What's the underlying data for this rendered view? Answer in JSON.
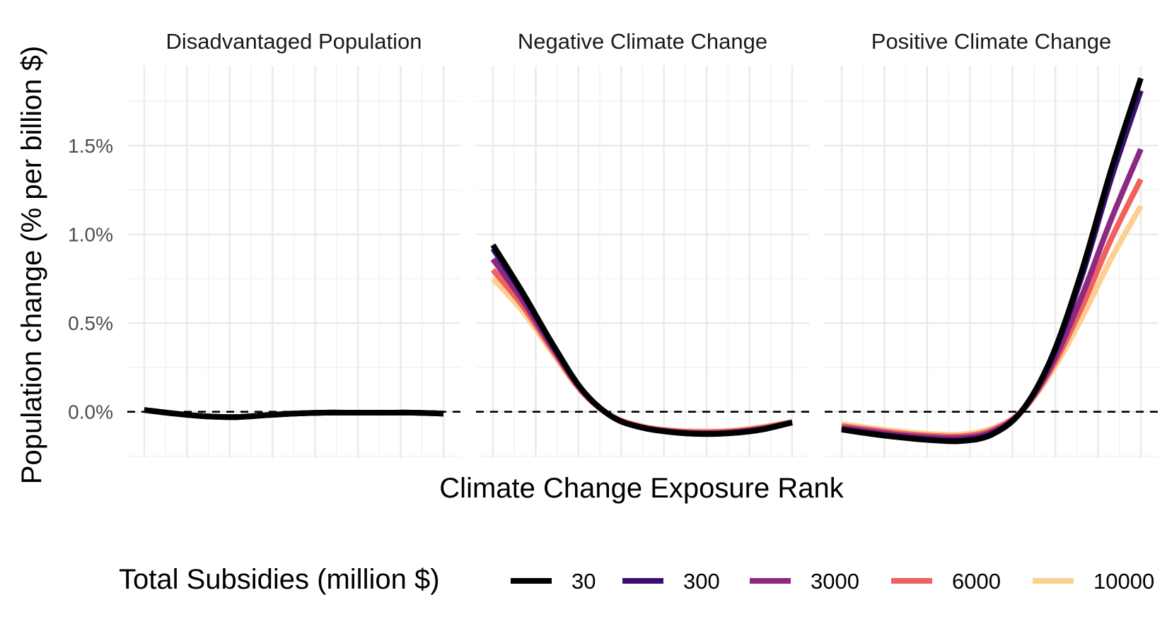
{
  "chart_data": {
    "type": "line",
    "facets": [
      "Disadvantaged Population",
      "Negative Climate Change",
      "Positive Climate Change"
    ],
    "xlabel": "Climate Change Exposure Rank",
    "ylabel": "Population change (% per billion $)",
    "x_tick_labels": [],
    "y_ticks": [
      0.0,
      0.5,
      1.0,
      1.5
    ],
    "y_tick_labels": [
      "0.0%",
      "0.5%",
      "1.0%",
      "1.5%"
    ],
    "ylim": [
      -0.26,
      1.95
    ],
    "xlim": [
      0,
      1
    ],
    "reference_line": {
      "y": 0,
      "style": "dashed"
    },
    "legend": {
      "title": "Total Subsidies (million $)",
      "position": "bottom",
      "entries": [
        "30",
        "300",
        "3000",
        "6000",
        "10000"
      ]
    },
    "x": [
      0,
      0.1,
      0.2,
      0.3,
      0.4,
      0.5,
      0.6,
      0.7,
      0.8,
      0.9,
      1.0
    ],
    "series": [
      {
        "name": "30",
        "color": "#000004",
        "facet_values": [
          [
            0.01,
            -0.01,
            -0.025,
            -0.03,
            -0.02,
            -0.01,
            -0.005,
            -0.005,
            -0.005,
            -0.005,
            -0.01
          ],
          [
            0.94,
            0.67,
            0.38,
            0.12,
            -0.03,
            -0.09,
            -0.115,
            -0.125,
            -0.12,
            -0.1,
            -0.06
          ],
          [
            -0.1,
            -0.125,
            -0.145,
            -0.16,
            -0.165,
            -0.13,
            0.0,
            0.3,
            0.78,
            1.36,
            1.88
          ]
        ]
      },
      {
        "name": "300",
        "color": "#3b0f70",
        "facet_values": [
          [
            0.01,
            -0.01,
            -0.025,
            -0.03,
            -0.02,
            -0.01,
            -0.005,
            -0.005,
            -0.005,
            -0.005,
            -0.01
          ],
          [
            0.92,
            0.66,
            0.375,
            0.12,
            -0.03,
            -0.09,
            -0.115,
            -0.125,
            -0.12,
            -0.1,
            -0.06
          ],
          [
            -0.1,
            -0.122,
            -0.142,
            -0.157,
            -0.16,
            -0.125,
            0.0,
            0.29,
            0.75,
            1.31,
            1.81
          ]
        ]
      },
      {
        "name": "3000",
        "color": "#8c2981",
        "facet_values": [
          [
            0.01,
            -0.01,
            -0.025,
            -0.03,
            -0.02,
            -0.01,
            -0.005,
            -0.005,
            -0.005,
            -0.005,
            -0.01
          ],
          [
            0.86,
            0.625,
            0.36,
            0.115,
            -0.03,
            -0.088,
            -0.112,
            -0.12,
            -0.115,
            -0.095,
            -0.06
          ],
          [
            -0.09,
            -0.112,
            -0.132,
            -0.145,
            -0.148,
            -0.115,
            0.0,
            0.26,
            0.64,
            1.08,
            1.48
          ]
        ]
      },
      {
        "name": "6000",
        "color": "#f1605d",
        "facet_values": [
          [
            0.01,
            -0.01,
            -0.025,
            -0.03,
            -0.02,
            -0.01,
            -0.005,
            -0.005,
            -0.005,
            -0.005,
            -0.01
          ],
          [
            0.8,
            0.595,
            0.345,
            0.11,
            -0.028,
            -0.085,
            -0.108,
            -0.115,
            -0.11,
            -0.09,
            -0.06
          ],
          [
            -0.08,
            -0.102,
            -0.122,
            -0.135,
            -0.138,
            -0.105,
            0.0,
            0.24,
            0.58,
            0.97,
            1.31
          ]
        ]
      },
      {
        "name": "10000",
        "color": "#fecf92",
        "facet_values": [
          [
            0.01,
            -0.01,
            -0.025,
            -0.03,
            -0.02,
            -0.01,
            -0.005,
            -0.005,
            -0.005,
            -0.005,
            -0.01
          ],
          [
            0.75,
            0.565,
            0.33,
            0.105,
            -0.025,
            -0.082,
            -0.104,
            -0.11,
            -0.105,
            -0.085,
            -0.055
          ],
          [
            -0.07,
            -0.092,
            -0.112,
            -0.125,
            -0.128,
            -0.095,
            0.0,
            0.22,
            0.52,
            0.86,
            1.16
          ]
        ]
      }
    ]
  }
}
